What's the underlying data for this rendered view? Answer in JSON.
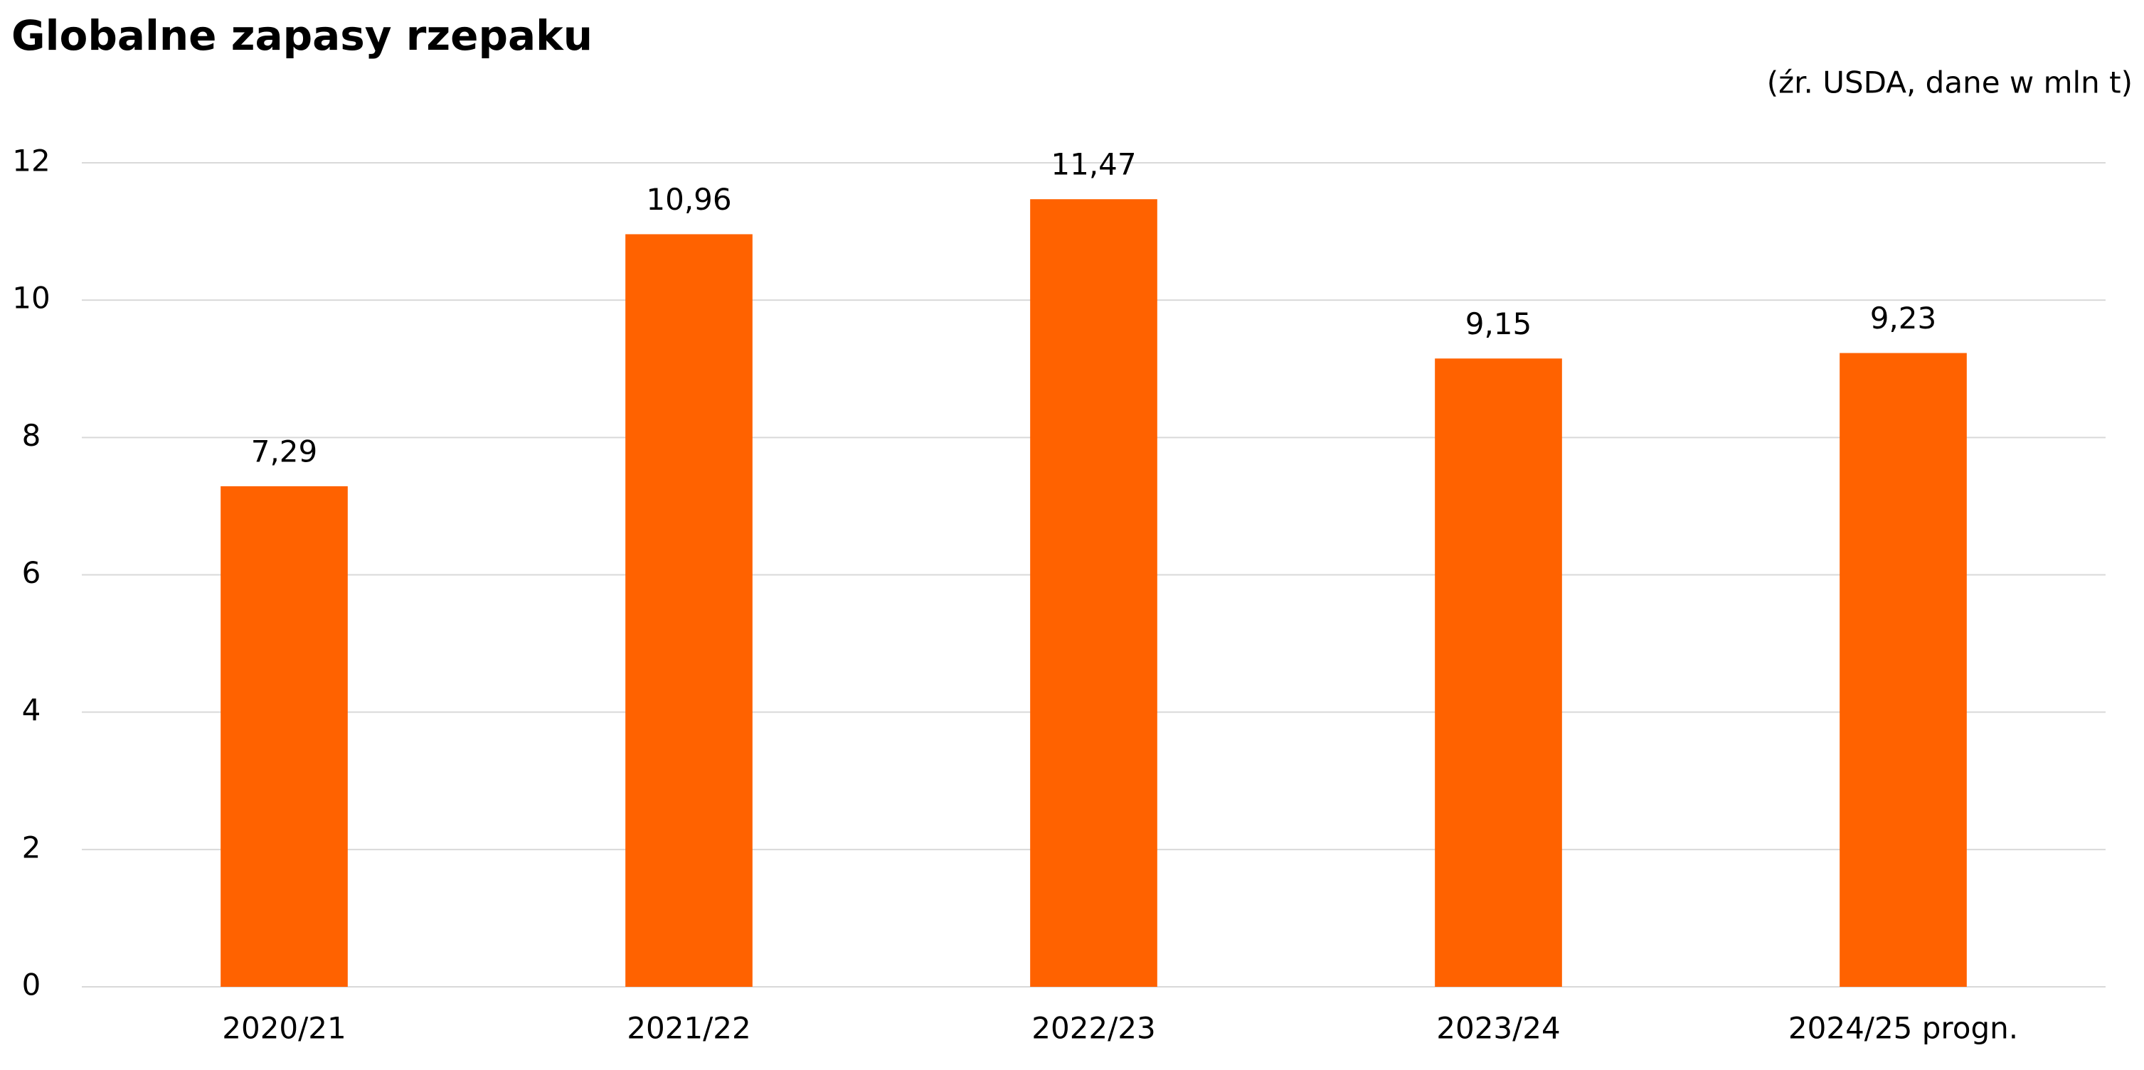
{
  "chart_data": {
    "type": "bar",
    "title": "Globalne zapasy rzepaku",
    "subtitle": "(źr. USDA, dane w mln t)",
    "categories": [
      "2020/21",
      "2021/22",
      "2022/23",
      "2023/24",
      "2024/25 progn."
    ],
    "values": [
      7.29,
      10.96,
      11.47,
      9.15,
      9.23
    ],
    "value_labels": [
      "7,29",
      "10,96",
      "11,47",
      "9,15",
      "9,23"
    ],
    "color": "#ff6200",
    "ylim": [
      0,
      12
    ],
    "yticks": [
      0,
      2,
      4,
      6,
      8,
      10,
      12
    ],
    "grid": true
  }
}
